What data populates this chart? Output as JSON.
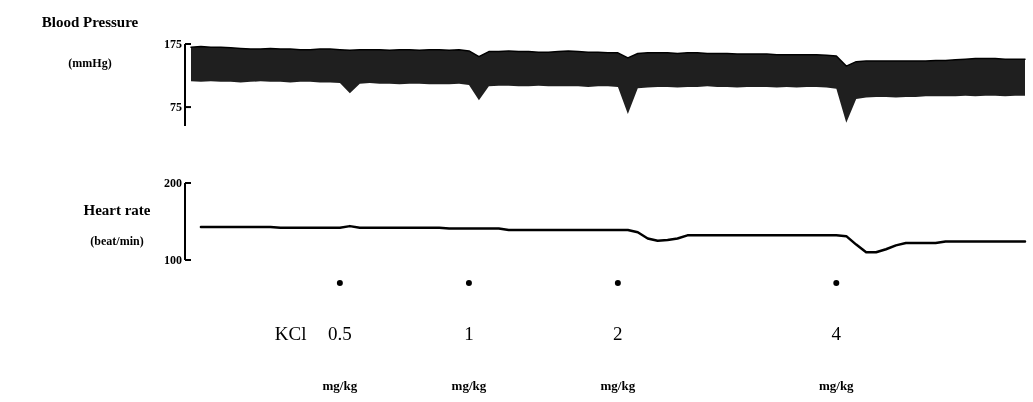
{
  "chart_data": [
    {
      "type": "line",
      "ylabel": "Blood Pressure (mmHg)",
      "tick_labels": "y",
      "ylim": [
        45,
        175
      ],
      "yticks": [
        75,
        175
      ],
      "categories": [
        null,
        null,
        null,
        null,
        null,
        null,
        null,
        null,
        null,
        null,
        null,
        null,
        null,
        null,
        null,
        null,
        null,
        null,
        null,
        null,
        null,
        null,
        null,
        null,
        null,
        null,
        null,
        null,
        null,
        null,
        null,
        null,
        null,
        null,
        null,
        null,
        null,
        null,
        null,
        null,
        null,
        null,
        null,
        null,
        null,
        null,
        null,
        null,
        null,
        null,
        null,
        null,
        null,
        null,
        null,
        null,
        null,
        null,
        null,
        null,
        null,
        null,
        null,
        null,
        null,
        null,
        null,
        null,
        null,
        null,
        null,
        null,
        null,
        null,
        null,
        null,
        null,
        null,
        null,
        null,
        null,
        null,
        null,
        null,
        null
      ],
      "series": [
        {
          "color": "#000000",
          "values": [
            170,
            171,
            170,
            170,
            169,
            168,
            167,
            167,
            168,
            167,
            167,
            166,
            166,
            167,
            167,
            166,
            165,
            166,
            166,
            166,
            165,
            166,
            166,
            165,
            166,
            166,
            165,
            166,
            164,
            155,
            163,
            163,
            164,
            163,
            163,
            162,
            162,
            163,
            164,
            163,
            162,
            162,
            161,
            161,
            153,
            160,
            161,
            161,
            161,
            160,
            161,
            161,
            160,
            160,
            160,
            159,
            159,
            159,
            159,
            158,
            158,
            158,
            158,
            158,
            157,
            156,
            140,
            147,
            148,
            148,
            148,
            148,
            148,
            148,
            148,
            149,
            149,
            150,
            151,
            152,
            152,
            152,
            151,
            151,
            151
          ],
          "upper": [
            170,
            171,
            170,
            170,
            169,
            168,
            167,
            167,
            168,
            167,
            167,
            166,
            166,
            167,
            167,
            166,
            165,
            166,
            166,
            166,
            165,
            166,
            166,
            165,
            166,
            166,
            165,
            166,
            164,
            155,
            163,
            163,
            164,
            163,
            163,
            162,
            162,
            163,
            164,
            163,
            162,
            162,
            161,
            161,
            153,
            160,
            161,
            161,
            161,
            160,
            161,
            161,
            160,
            160,
            160,
            159,
            159,
            159,
            159,
            158,
            158,
            158,
            158,
            158,
            157,
            156,
            140,
            147,
            148,
            148,
            148,
            148,
            148,
            148,
            148,
            149,
            149,
            150,
            151,
            152,
            152,
            152,
            151,
            151,
            151
          ],
          "lower": [
            116,
            115,
            116,
            115,
            115,
            114,
            115,
            116,
            115,
            115,
            114,
            115,
            115,
            114,
            114,
            113,
            97,
            112,
            113,
            112,
            112,
            111,
            112,
            112,
            111,
            111,
            111,
            112,
            110,
            86,
            108,
            109,
            109,
            108,
            108,
            109,
            108,
            108,
            108,
            108,
            107,
            108,
            108,
            107,
            64,
            105,
            106,
            107,
            107,
            106,
            107,
            107,
            108,
            107,
            107,
            106,
            107,
            107,
            107,
            106,
            107,
            106,
            107,
            107,
            106,
            104,
            50,
            88,
            90,
            91,
            91,
            90,
            91,
            91,
            92,
            92,
            92,
            92,
            93,
            92,
            93,
            93,
            92,
            93,
            93
          ]
        }
      ]
    },
    {
      "type": "line",
      "ylabel": "Heart rate (beat/min)",
      "tick_labels": "y",
      "ylim": [
        100,
        200
      ],
      "yticks": [
        100,
        200
      ],
      "categories": [
        null,
        null,
        null,
        null,
        null,
        null,
        null,
        null,
        null,
        null,
        null,
        null,
        null,
        null,
        null,
        null,
        null,
        null,
        null,
        null,
        null,
        null,
        null,
        null,
        null,
        null,
        null,
        null,
        null,
        null,
        null,
        null,
        null,
        null,
        null,
        null,
        null,
        null,
        null,
        null,
        null,
        null,
        null,
        null,
        null,
        null,
        null,
        null,
        null,
        null,
        null,
        null,
        null,
        null,
        null,
        null,
        null,
        null,
        null,
        null,
        null,
        null,
        null,
        null,
        null,
        null,
        null,
        null,
        null,
        null,
        null,
        null,
        null,
        null,
        null,
        null,
        null,
        null,
        null,
        null,
        null,
        null,
        null,
        null,
        null
      ],
      "series": [
        {
          "color": "#000000",
          "values": [
            null,
            143,
            143,
            143,
            143,
            143,
            143,
            143,
            143,
            142,
            142,
            142,
            142,
            142,
            142,
            142,
            144,
            142,
            142,
            142,
            142,
            142,
            142,
            142,
            142,
            142,
            141,
            141,
            141,
            141,
            141,
            141,
            139,
            139,
            139,
            139,
            139,
            139,
            139,
            139,
            139,
            139,
            139,
            139,
            139,
            136,
            128,
            125,
            126,
            128,
            132,
            132,
            132,
            132,
            132,
            132,
            132,
            132,
            132,
            132,
            132,
            132,
            132,
            132,
            132,
            132,
            131,
            120,
            110,
            110,
            114,
            119,
            122,
            122,
            122,
            122,
            124,
            124,
            124,
            124,
            124,
            124,
            124,
            124,
            124
          ]
        }
      ],
      "annotations": [
        "KCl",
        "0.5",
        "mg/kg",
        "1",
        "mg/kg",
        "2",
        "mg/kg",
        "4",
        "mg/kg"
      ]
    }
  ]
}
